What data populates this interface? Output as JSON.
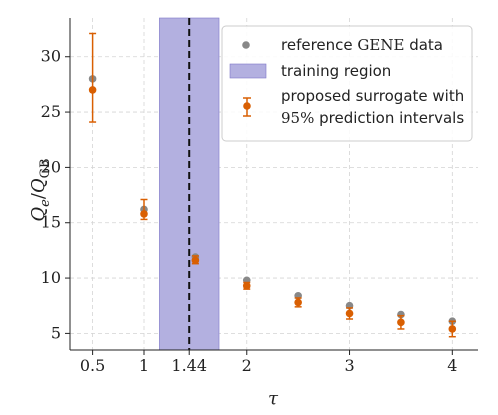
{
  "chart_data": {
    "type": "scatter",
    "xlabel": "τ",
    "ylabel_main": "Q",
    "ylabel_sub_main": "e",
    "ylabel_den": "Q",
    "ylabel_sub_den": "GB",
    "xlim": [
      0.28,
      4.25
    ],
    "ylim": [
      3.5,
      33.5
    ],
    "x_ticks": [
      0.5,
      1,
      1.44,
      2,
      3,
      4
    ],
    "x_tick_labels": [
      "0.5",
      "1",
      "1.44",
      "2",
      "3",
      "4"
    ],
    "y_ticks": [
      5,
      10,
      15,
      20,
      25,
      30
    ],
    "y_tick_labels": [
      "5",
      "10",
      "15",
      "20",
      "25",
      "30"
    ],
    "grid": true,
    "legend_position": "top-right",
    "training_region": {
      "x_start": 1.15,
      "x_end": 1.73,
      "color": "#b3b0e0",
      "edge_color": "#7d77c9"
    },
    "training_line_x": 1.44,
    "series": [
      {
        "name": "reference GENE data",
        "color": "#888888",
        "x": [
          0.5,
          1.0,
          1.5,
          2.0,
          2.5,
          3.0,
          3.5,
          4.0
        ],
        "y": [
          28.0,
          16.2,
          11.9,
          9.8,
          8.4,
          7.5,
          6.7,
          6.1
        ]
      },
      {
        "name": "proposed surrogate with 95% prediction intervals",
        "color": "#d95f02",
        "x": [
          0.5,
          1.0,
          1.5,
          2.0,
          2.5,
          3.0,
          3.5,
          4.0
        ],
        "y": [
          27.0,
          15.8,
          11.6,
          9.3,
          7.8,
          6.8,
          6.0,
          5.4
        ],
        "err_low": [
          24.1,
          15.3,
          11.3,
          9.0,
          7.4,
          6.3,
          5.4,
          4.7
        ],
        "err_high": [
          32.1,
          17.1,
          12.0,
          9.6,
          8.2,
          7.3,
          6.6,
          6.1
        ]
      }
    ]
  },
  "legend": {
    "reference_label_prefix": "reference ",
    "reference_label_gene": "GENE",
    "reference_label_suffix": " data",
    "training_label": "training region",
    "surrogate_label_line1": "proposed surrogate with",
    "surrogate_label_line2_pct": "95%",
    "surrogate_label_line2_rest": " prediction intervals"
  }
}
